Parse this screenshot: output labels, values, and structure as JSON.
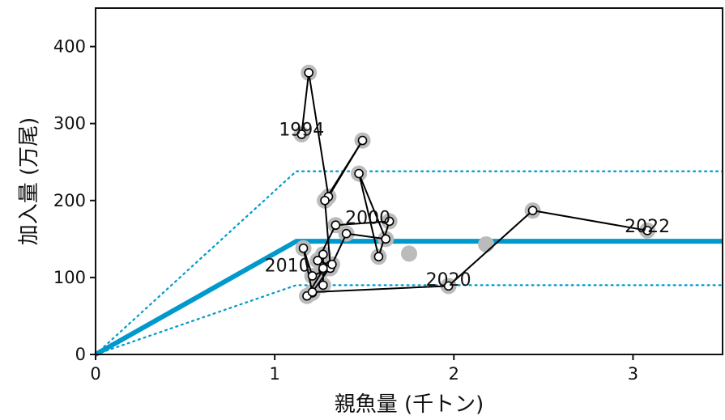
{
  "chart_data": {
    "type": "scatter",
    "xlabel": "親魚量 (千トン)",
    "ylabel": "加入量 (万尾)",
    "xlim": [
      0,
      3.5
    ],
    "ylim": [
      0,
      450
    ],
    "x_ticks": [
      0,
      1,
      2,
      3
    ],
    "y_ticks": [
      0,
      100,
      200,
      300,
      400
    ],
    "grid": false,
    "colors": {
      "fit": "#0099cc",
      "observed": "#bbbbbb",
      "path": "#000000"
    },
    "stock_recruitment_fit": {
      "breakpoint_x": 1.12,
      "central": 147,
      "upper": 238,
      "lower": 90,
      "x_end": 3.5
    },
    "gray_points": [
      {
        "x": 1.75,
        "y": 131
      },
      {
        "x": 2.18,
        "y": 143
      }
    ],
    "series": [
      {
        "points": [
          {
            "x": 1.15,
            "y": 286
          },
          {
            "x": 1.19,
            "y": 366
          },
          {
            "x": 1.3,
            "y": 205
          },
          {
            "x": 1.49,
            "y": 278
          },
          {
            "x": 1.28,
            "y": 200
          },
          {
            "x": 1.31,
            "y": 116
          },
          {
            "x": 1.24,
            "y": 122
          },
          {
            "x": 1.34,
            "y": 168
          },
          {
            "x": 1.64,
            "y": 173
          },
          {
            "x": 1.58,
            "y": 127
          },
          {
            "x": 1.47,
            "y": 235
          },
          {
            "x": 1.62,
            "y": 150
          },
          {
            "x": 1.4,
            "y": 157
          },
          {
            "x": 1.31,
            "y": 112
          },
          {
            "x": 1.21,
            "y": 102
          },
          {
            "x": 1.16,
            "y": 138
          },
          {
            "x": 1.21,
            "y": 80
          },
          {
            "x": 1.18,
            "y": 76
          },
          {
            "x": 1.27,
            "y": 110
          },
          {
            "x": 1.27,
            "y": 90
          },
          {
            "x": 1.27,
            "y": 130
          },
          {
            "x": 1.27,
            "y": 112
          },
          {
            "x": 1.32,
            "y": 117
          },
          {
            "x": 1.21,
            "y": 81
          },
          {
            "x": 1.97,
            "y": 89
          },
          {
            "x": 2.44,
            "y": 187
          },
          {
            "x": 3.08,
            "y": 161
          }
        ]
      }
    ],
    "annotations": [
      {
        "text": "1994",
        "x": 1.15,
        "y": 293
      },
      {
        "text": "2000",
        "x": 1.52,
        "y": 178
      },
      {
        "text": "2010",
        "x": 1.07,
        "y": 116
      },
      {
        "text": "2020",
        "x": 1.97,
        "y": 98
      },
      {
        "text": "2022",
        "x": 3.08,
        "y": 167
      }
    ]
  }
}
